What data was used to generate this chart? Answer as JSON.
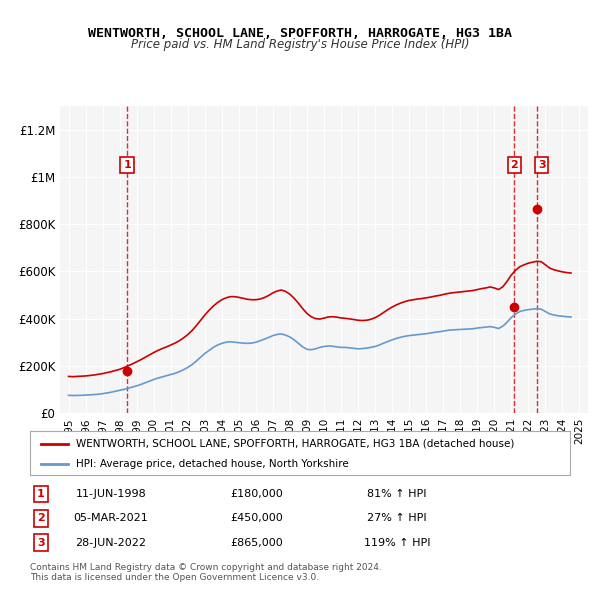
{
  "title": "WENTWORTH, SCHOOL LANE, SPOFFORTH, HARROGATE, HG3 1BA",
  "subtitle": "Price paid vs. HM Land Registry's House Price Index (HPI)",
  "legend_line1": "WENTWORTH, SCHOOL LANE, SPOFFORTH, HARROGATE, HG3 1BA (detached house)",
  "legend_line2": "HPI: Average price, detached house, North Yorkshire",
  "footer1": "Contains HM Land Registry data © Crown copyright and database right 2024.",
  "footer2": "This data is licensed under the Open Government Licence v3.0.",
  "sales": [
    {
      "num": 1,
      "date": "11-JUN-1998",
      "price": 180000,
      "pct": "81%",
      "dir": "↑"
    },
    {
      "num": 2,
      "date": "05-MAR-2021",
      "price": 450000,
      "pct": "27%",
      "dir": "↑"
    },
    {
      "num": 3,
      "date": "28-JUN-2022",
      "price": 865000,
      "pct": "119%",
      "dir": "↑"
    }
  ],
  "sale_years": [
    1998.44,
    2021.17,
    2022.48
  ],
  "sale_prices": [
    180000,
    450000,
    865000
  ],
  "red_color": "#cc0000",
  "blue_color": "#6699cc",
  "hpi_years": [
    1995.0,
    1995.25,
    1995.5,
    1995.75,
    1996.0,
    1996.25,
    1996.5,
    1996.75,
    1997.0,
    1997.25,
    1997.5,
    1997.75,
    1998.0,
    1998.25,
    1998.5,
    1998.75,
    1999.0,
    1999.25,
    1999.5,
    1999.75,
    2000.0,
    2000.25,
    2000.5,
    2000.75,
    2001.0,
    2001.25,
    2001.5,
    2001.75,
    2002.0,
    2002.25,
    2002.5,
    2002.75,
    2003.0,
    2003.25,
    2003.5,
    2003.75,
    2004.0,
    2004.25,
    2004.5,
    2004.75,
    2005.0,
    2005.25,
    2005.5,
    2005.75,
    2006.0,
    2006.25,
    2006.5,
    2006.75,
    2007.0,
    2007.25,
    2007.5,
    2007.75,
    2008.0,
    2008.25,
    2008.5,
    2008.75,
    2009.0,
    2009.25,
    2009.5,
    2009.75,
    2010.0,
    2010.25,
    2010.5,
    2010.75,
    2011.0,
    2011.25,
    2011.5,
    2011.75,
    2012.0,
    2012.25,
    2012.5,
    2012.75,
    2013.0,
    2013.25,
    2013.5,
    2013.75,
    2014.0,
    2014.25,
    2014.5,
    2014.75,
    2015.0,
    2015.25,
    2015.5,
    2015.75,
    2016.0,
    2016.25,
    2016.5,
    2016.75,
    2017.0,
    2017.25,
    2017.5,
    2017.75,
    2018.0,
    2018.25,
    2018.5,
    2018.75,
    2019.0,
    2019.25,
    2019.5,
    2019.75,
    2020.0,
    2020.25,
    2020.5,
    2020.75,
    2021.0,
    2021.25,
    2021.5,
    2021.75,
    2022.0,
    2022.25,
    2022.5,
    2022.75,
    2023.0,
    2023.25,
    2023.5,
    2023.75,
    2024.0,
    2024.25,
    2024.5
  ],
  "hpi_values": [
    75000,
    74000,
    74500,
    75000,
    76000,
    77000,
    78000,
    79500,
    82000,
    85000,
    88000,
    92000,
    96000,
    100000,
    105000,
    110000,
    115000,
    121000,
    128000,
    135000,
    142000,
    148000,
    153000,
    158000,
    163000,
    168000,
    175000,
    183000,
    193000,
    205000,
    220000,
    236000,
    252000,
    265000,
    278000,
    288000,
    295000,
    300000,
    302000,
    300000,
    298000,
    296000,
    295000,
    296000,
    300000,
    306000,
    313000,
    320000,
    328000,
    333000,
    335000,
    330000,
    322000,
    310000,
    295000,
    280000,
    270000,
    268000,
    272000,
    278000,
    282000,
    284000,
    283000,
    280000,
    278000,
    278000,
    276000,
    274000,
    272000,
    273000,
    275000,
    278000,
    282000,
    288000,
    296000,
    303000,
    310000,
    316000,
    321000,
    325000,
    328000,
    330000,
    332000,
    334000,
    336000,
    339000,
    342000,
    344000,
    347000,
    350000,
    352000,
    353000,
    354000,
    355000,
    356000,
    357000,
    360000,
    362000,
    364000,
    366000,
    363000,
    358000,
    368000,
    385000,
    405000,
    420000,
    430000,
    435000,
    438000,
    440000,
    442000,
    440000,
    430000,
    420000,
    415000,
    412000,
    410000,
    408000,
    407000
  ],
  "red_line_years": [
    1995.0,
    1995.25,
    1995.5,
    1995.75,
    1996.0,
    1996.25,
    1996.5,
    1996.75,
    1997.0,
    1997.25,
    1997.5,
    1997.75,
    1998.0,
    1998.25,
    1998.5,
    1998.75,
    1999.0,
    1999.25,
    1999.5,
    1999.75,
    2000.0,
    2000.25,
    2000.5,
    2000.75,
    2001.0,
    2001.25,
    2001.5,
    2001.75,
    2002.0,
    2002.25,
    2002.5,
    2002.75,
    2003.0,
    2003.25,
    2003.5,
    2003.75,
    2004.0,
    2004.25,
    2004.5,
    2004.75,
    2005.0,
    2005.25,
    2005.5,
    2005.75,
    2006.0,
    2006.25,
    2006.5,
    2006.75,
    2007.0,
    2007.25,
    2007.5,
    2007.75,
    2008.0,
    2008.25,
    2008.5,
    2008.75,
    2009.0,
    2009.25,
    2009.5,
    2009.75,
    2010.0,
    2010.25,
    2010.5,
    2010.75,
    2011.0,
    2011.25,
    2011.5,
    2011.75,
    2012.0,
    2012.25,
    2012.5,
    2012.75,
    2013.0,
    2013.25,
    2013.5,
    2013.75,
    2014.0,
    2014.25,
    2014.5,
    2014.75,
    2015.0,
    2015.25,
    2015.5,
    2015.75,
    2016.0,
    2016.25,
    2016.5,
    2016.75,
    2017.0,
    2017.25,
    2017.5,
    2017.75,
    2018.0,
    2018.25,
    2018.5,
    2018.75,
    2019.0,
    2019.25,
    2019.5,
    2019.75,
    2020.0,
    2020.25,
    2020.5,
    2020.75,
    2021.0,
    2021.25,
    2021.5,
    2021.75,
    2022.0,
    2022.25,
    2022.5,
    2022.75,
    2023.0,
    2023.25,
    2023.5,
    2023.75,
    2024.0,
    2024.25,
    2024.5
  ],
  "red_line_values": [
    155000,
    154000,
    155000,
    156000,
    157000,
    159000,
    161000,
    164000,
    167000,
    171000,
    175000,
    180000,
    185000,
    192000,
    200000,
    208000,
    217000,
    226000,
    236000,
    246000,
    256000,
    265000,
    273000,
    280000,
    288000,
    296000,
    306000,
    318000,
    332000,
    349000,
    370000,
    392000,
    415000,
    435000,
    453000,
    468000,
    480000,
    488000,
    493000,
    493000,
    490000,
    486000,
    482000,
    480000,
    480000,
    483000,
    489000,
    498000,
    509000,
    517000,
    521000,
    515000,
    503000,
    486000,
    465000,
    442000,
    422000,
    408000,
    400000,
    398000,
    402000,
    407000,
    408000,
    406000,
    403000,
    401000,
    399000,
    396000,
    393000,
    392000,
    393000,
    397000,
    404000,
    414000,
    426000,
    438000,
    449000,
    458000,
    466000,
    472000,
    477000,
    480000,
    483000,
    485000,
    488000,
    491000,
    495000,
    498000,
    502000,
    506000,
    509000,
    511000,
    513000,
    515000,
    517000,
    519000,
    523000,
    527000,
    530000,
    534000,
    530000,
    523000,
    535000,
    558000,
    585000,
    605000,
    620000,
    628000,
    635000,
    639000,
    643000,
    641000,
    628000,
    614000,
    607000,
    602000,
    598000,
    595000,
    593000
  ],
  "ylim": [
    0,
    1300000
  ],
  "xlim": [
    1994.5,
    2025.5
  ],
  "yticks": [
    0,
    200000,
    400000,
    600000,
    800000,
    1000000,
    1200000
  ],
  "ytick_labels": [
    "£0",
    "£200K",
    "£400K",
    "£600K",
    "£800K",
    "£1M",
    "£1.2M"
  ],
  "xticks": [
    1995,
    1996,
    1997,
    1998,
    1999,
    2000,
    2001,
    2002,
    2003,
    2004,
    2005,
    2006,
    2007,
    2008,
    2009,
    2010,
    2011,
    2012,
    2013,
    2014,
    2015,
    2016,
    2017,
    2018,
    2019,
    2020,
    2021,
    2022,
    2023,
    2024,
    2025
  ]
}
